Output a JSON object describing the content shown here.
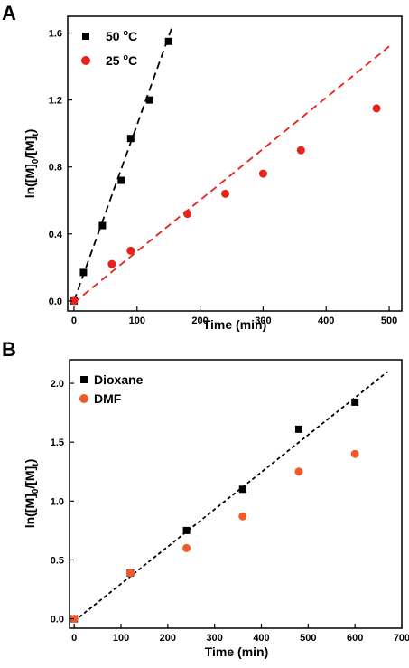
{
  "chart_data": [
    {
      "type": "scatter",
      "panel_label": "A",
      "xlabel": "Time (min)",
      "ylabel": "ln([M]0/[M]t)",
      "ylabel_parts": {
        "pre": "ln([M]",
        "sub1": "0",
        "mid": "/[M]",
        "sub2": "t",
        "post": ")"
      },
      "xlim": [
        -10,
        520
      ],
      "ylim": [
        -0.06,
        1.7
      ],
      "xticks": [
        0,
        100,
        200,
        300,
        400,
        500
      ],
      "yticks": [
        0.0,
        0.4,
        0.8,
        1.2,
        1.6
      ],
      "ytick_labels": [
        "0.0",
        "0.4",
        "0.8",
        "1.2",
        "1.6"
      ],
      "legend_position": "top-left",
      "series": [
        {
          "name": "50 °C",
          "legend_parts": {
            "num": "50 ",
            "deg": "o",
            "unit": "C"
          },
          "marker": "square",
          "color": "#000000",
          "x": [
            0,
            15,
            45,
            75,
            90,
            120,
            150
          ],
          "y": [
            0.0,
            0.17,
            0.45,
            0.72,
            0.97,
            1.2,
            1.55
          ],
          "fit": {
            "x": [
              0,
              155
            ],
            "y": [
              0.0,
              1.63
            ],
            "color": "#000000"
          }
        },
        {
          "name": "25 °C",
          "legend_parts": {
            "num": "25 ",
            "deg": "o",
            "unit": "C"
          },
          "marker": "circle",
          "color": "#e8211a",
          "x": [
            0,
            60,
            90,
            180,
            240,
            300,
            360,
            480
          ],
          "y": [
            0.0,
            0.22,
            0.3,
            0.52,
            0.64,
            0.76,
            0.9,
            1.15
          ],
          "fit": {
            "x": [
              0,
              500
            ],
            "y": [
              -0.01,
              1.52
            ],
            "color": "#e8211a"
          }
        }
      ]
    },
    {
      "type": "scatter",
      "panel_label": "B",
      "xlabel": "Time (min)",
      "ylabel": "ln([M]0/[M]t)",
      "ylabel_parts": {
        "pre": "ln([M]",
        "sub1": "0",
        "mid": "/[M]",
        "sub2": "t",
        "post": ")"
      },
      "xlim": [
        -10,
        700
      ],
      "ylim": [
        -0.08,
        2.2
      ],
      "xticks": [
        0,
        100,
        200,
        300,
        400,
        500,
        600,
        700
      ],
      "yticks": [
        0.0,
        0.5,
        1.0,
        1.5,
        2.0
      ],
      "ytick_labels": [
        "0.0",
        "0.5",
        "1.0",
        "1.5",
        "2.0"
      ],
      "legend_position": "top-left",
      "series": [
        {
          "name": "Dioxane",
          "marker": "square",
          "color": "#000000",
          "x": [
            0,
            120,
            240,
            360,
            480,
            600
          ],
          "y": [
            0.0,
            0.39,
            0.75,
            1.1,
            1.61,
            1.84
          ],
          "fit": {
            "x": [
              0,
              670
            ],
            "y": [
              -0.02,
              2.1
            ],
            "color": "#000000"
          }
        },
        {
          "name": "DMF",
          "marker": "circle",
          "color": "#f05a2a",
          "x": [
            0,
            120,
            240,
            360,
            480,
            600
          ],
          "y": [
            0.0,
            0.39,
            0.6,
            0.87,
            1.25,
            1.4
          ]
        }
      ]
    }
  ]
}
